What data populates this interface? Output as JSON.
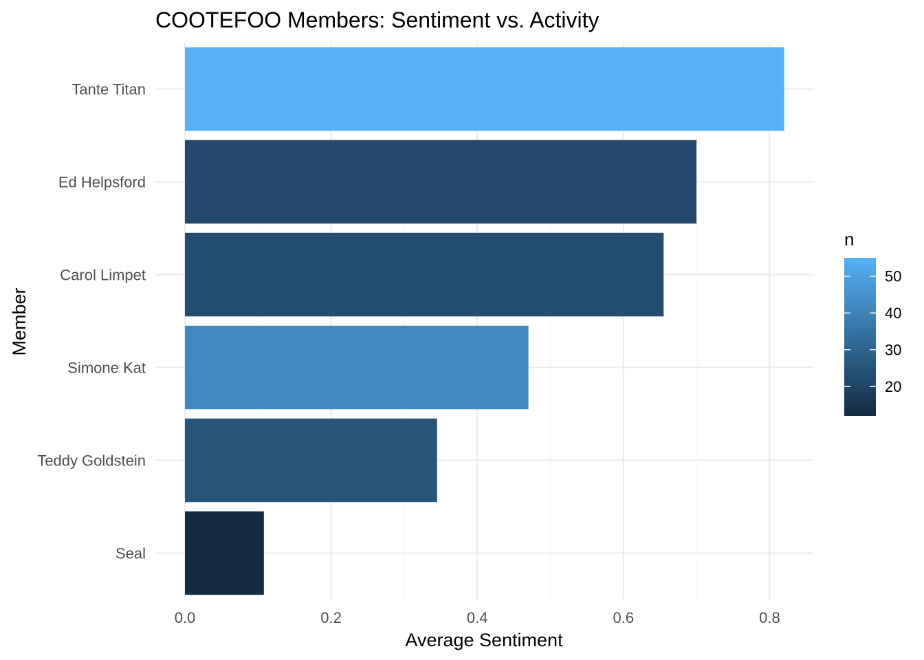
{
  "chart_data": {
    "type": "bar",
    "orientation": "horizontal",
    "title": "COOTEFOO Members: Sentiment vs. Activity",
    "xlabel": "Average Sentiment",
    "ylabel": "Member",
    "categories": [
      "Tante Titan",
      "Ed Helpsford",
      "Carol Limpet",
      "Simone Kat",
      "Teddy Goldstein",
      "Seal"
    ],
    "values": [
      0.82,
      0.7,
      0.655,
      0.47,
      0.345,
      0.108
    ],
    "fill_values": [
      55,
      22,
      23,
      42,
      25,
      12
    ],
    "xlim": [
      0,
      0.86
    ],
    "x_ticks": [
      0.0,
      0.2,
      0.4,
      0.6,
      0.8
    ],
    "x_tick_labels": [
      "0.0",
      "0.2",
      "0.4",
      "0.6",
      "0.8"
    ],
    "grid": true,
    "legend": {
      "title": "n",
      "position": "right",
      "type": "colorbar",
      "range": [
        12,
        55
      ],
      "breaks": [
        50,
        40,
        30,
        20
      ],
      "labels": [
        "50",
        "40",
        "30",
        "20"
      ],
      "low_color": "#132b43",
      "high_color": "#56b1f7"
    }
  }
}
